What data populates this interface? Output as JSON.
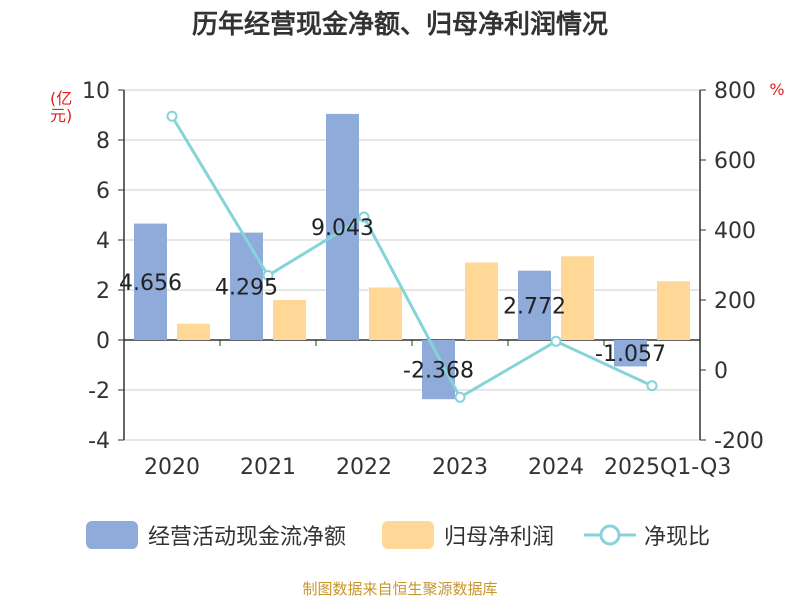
{
  "chart_data": {
    "type": "bar",
    "title": "历年经营现金净额、归母净利润情况",
    "ylabel": "(亿元)",
    "y2label": "%",
    "categories": [
      "2020",
      "2021",
      "2022",
      "2023",
      "2024",
      "2025Q1-Q3"
    ],
    "ylim": [
      -4,
      10
    ],
    "yticks": [
      -4,
      -2,
      0,
      2,
      4,
      6,
      8,
      10
    ],
    "y2lim": [
      -200,
      800
    ],
    "y2ticks": [
      -200,
      0,
      200,
      400,
      600,
      800
    ],
    "series": [
      {
        "name": "经营活动现金流净额",
        "type": "bar",
        "axis": "left",
        "color": "#8eabd9",
        "values": [
          4.656,
          4.295,
          9.043,
          -2.368,
          2.772,
          -1.057
        ],
        "labels": [
          "4.656",
          "4.295",
          "9.043",
          "-2.368",
          "2.772",
          "-1.057"
        ]
      },
      {
        "name": "归母净利润",
        "type": "bar",
        "axis": "left",
        "color": "#ffd797",
        "values": [
          0.65,
          1.6,
          2.1,
          3.1,
          3.35,
          2.35
        ]
      },
      {
        "name": "净现比",
        "type": "line",
        "axis": "right",
        "color": "#86d3d9",
        "values": [
          725,
          270,
          437,
          -78,
          82,
          -45
        ]
      }
    ],
    "grid": true,
    "legend_position": "bottom"
  },
  "source": "制图数据来自恒生聚源数据库"
}
